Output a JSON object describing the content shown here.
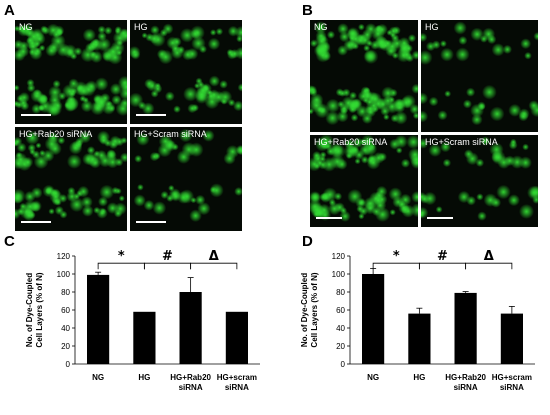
{
  "panels": {
    "a": "A",
    "b": "B",
    "c": "C",
    "d": "D"
  },
  "micrographs": {
    "A": {
      "tiles": [
        {
          "label": "NG",
          "density": "high"
        },
        {
          "label": "HG",
          "density": "mid"
        },
        {
          "label": "HG+Rab20 siRNA",
          "density": "mid-high"
        },
        {
          "label": "HG+Scram siRNA",
          "density": "low"
        }
      ]
    },
    "B": {
      "tiles": [
        {
          "label": "NG",
          "density": "high"
        },
        {
          "label": "HG",
          "density": "low"
        },
        {
          "label": "HG+Rab20 siRNA",
          "density": "mid-high"
        },
        {
          "label": "HG+Scram siRNA",
          "density": "low"
        }
      ]
    },
    "stain_color": "#33dd33"
  },
  "chart_data": [
    {
      "type": "bar",
      "panel": "C",
      "categories": [
        "NG",
        "HG",
        "HG+Rab20 siRNA",
        "HG+scram siRNA"
      ],
      "category_lines": [
        [
          "NG"
        ],
        [
          "HG"
        ],
        [
          "HG+Rab20",
          "siRNA"
        ],
        [
          "HG+scram",
          "siRNA"
        ]
      ],
      "values": [
        99,
        58,
        80,
        58
      ],
      "errors": [
        3,
        0.5,
        16,
        0.5
      ],
      "ylabel": [
        "No. of Dye-Coupled",
        "Cell Layers (% of N)"
      ],
      "ylim": [
        0,
        120
      ],
      "yticks": [
        0,
        20,
        40,
        60,
        80,
        100,
        120
      ],
      "bar_color": "#000000",
      "significance": [
        {
          "from": 0,
          "to": 1,
          "symbol": "*"
        },
        {
          "from": 1,
          "to": 2,
          "symbol": "#"
        },
        {
          "from": 2,
          "to": 3,
          "symbol": "Δ"
        }
      ]
    },
    {
      "type": "bar",
      "panel": "D",
      "categories": [
        "NG",
        "HG",
        "HG+Rab20 siRNA",
        "HG+scram siRNA"
      ],
      "category_lines": [
        [
          "NG"
        ],
        [
          "HG"
        ],
        [
          "HG+Rab20",
          "siRNA"
        ],
        [
          "HG+scram",
          "siRNA"
        ]
      ],
      "values": [
        100,
        56,
        79,
        56
      ],
      "errors": [
        6,
        6,
        1.5,
        8
      ],
      "ylabel": [
        "No. of Dye-Coupled",
        "Cell Layers (% of N)"
      ],
      "ylim": [
        0,
        120
      ],
      "yticks": [
        0,
        20,
        40,
        60,
        80,
        100,
        120
      ],
      "bar_color": "#000000",
      "significance": [
        {
          "from": 0,
          "to": 1,
          "symbol": "*"
        },
        {
          "from": 1,
          "to": 2,
          "symbol": "#"
        },
        {
          "from": 2,
          "to": 3,
          "symbol": "Δ"
        }
      ]
    }
  ]
}
